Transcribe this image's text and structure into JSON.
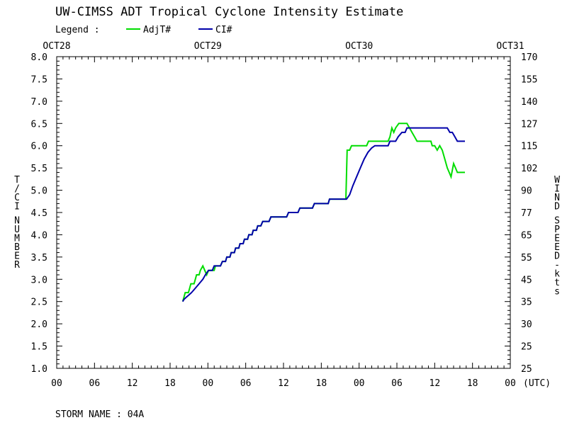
{
  "chart_data": {
    "type": "line",
    "title": "UW-CIMSS ADT Tropical Cyclone Intensity Estimate",
    "legend_label": "Legend :",
    "series": [
      {
        "name": "AdjT#",
        "color": "#00dd00",
        "points": [
          [
            20.0,
            2.5
          ],
          [
            20.2,
            2.6
          ],
          [
            20.4,
            2.7
          ],
          [
            20.9,
            2.7
          ],
          [
            21.1,
            2.8
          ],
          [
            21.3,
            2.9
          ],
          [
            21.8,
            2.9
          ],
          [
            22.0,
            3.0
          ],
          [
            22.2,
            3.1
          ],
          [
            22.6,
            3.1
          ],
          [
            22.8,
            3.2
          ],
          [
            23.2,
            3.3
          ],
          [
            23.5,
            3.2
          ],
          [
            23.8,
            3.1
          ],
          [
            24.1,
            3.2
          ],
          [
            25.0,
            3.2
          ],
          [
            25.2,
            3.3
          ],
          [
            26.0,
            3.3
          ],
          [
            26.3,
            3.4
          ],
          [
            26.8,
            3.4
          ],
          [
            27.0,
            3.5
          ],
          [
            27.5,
            3.5
          ],
          [
            27.7,
            3.6
          ],
          [
            28.2,
            3.6
          ],
          [
            28.4,
            3.7
          ],
          [
            28.9,
            3.7
          ],
          [
            29.1,
            3.8
          ],
          [
            29.6,
            3.8
          ],
          [
            29.8,
            3.9
          ],
          [
            30.3,
            3.9
          ],
          [
            30.5,
            4.0
          ],
          [
            31.0,
            4.0
          ],
          [
            31.2,
            4.1
          ],
          [
            31.7,
            4.1
          ],
          [
            31.9,
            4.2
          ],
          [
            32.4,
            4.2
          ],
          [
            32.7,
            4.3
          ],
          [
            33.7,
            4.3
          ],
          [
            34.0,
            4.4
          ],
          [
            36.5,
            4.4
          ],
          [
            36.8,
            4.5
          ],
          [
            38.3,
            4.5
          ],
          [
            38.6,
            4.6
          ],
          [
            40.6,
            4.6
          ],
          [
            40.9,
            4.7
          ],
          [
            43.1,
            4.7
          ],
          [
            43.3,
            4.8
          ],
          [
            45.9,
            4.8
          ],
          [
            46.1,
            5.9
          ],
          [
            46.5,
            5.9
          ],
          [
            46.8,
            6.0
          ],
          [
            49.2,
            6.0
          ],
          [
            49.5,
            6.1
          ],
          [
            52.6,
            6.1
          ],
          [
            52.9,
            6.2
          ],
          [
            53.2,
            6.4
          ],
          [
            53.5,
            6.3
          ],
          [
            53.8,
            6.4
          ],
          [
            54.3,
            6.5
          ],
          [
            55.6,
            6.5
          ],
          [
            56.0,
            6.4
          ],
          [
            56.4,
            6.3
          ],
          [
            56.8,
            6.2
          ],
          [
            57.2,
            6.1
          ],
          [
            59.4,
            6.1
          ],
          [
            59.6,
            6.0
          ],
          [
            60.0,
            6.0
          ],
          [
            60.4,
            5.9
          ],
          [
            60.8,
            6.0
          ],
          [
            61.2,
            5.9
          ],
          [
            61.6,
            5.7
          ],
          [
            62.0,
            5.5
          ],
          [
            62.3,
            5.4
          ],
          [
            62.6,
            5.3
          ],
          [
            63.0,
            5.6
          ],
          [
            63.3,
            5.5
          ],
          [
            63.6,
            5.4
          ],
          [
            64.8,
            5.4
          ]
        ]
      },
      {
        "name": "CI#",
        "color": "#0000aa",
        "points": [
          [
            20.0,
            2.5
          ],
          [
            20.2,
            2.55
          ],
          [
            20.6,
            2.6
          ],
          [
            21.0,
            2.65
          ],
          [
            21.4,
            2.7
          ],
          [
            22.0,
            2.8
          ],
          [
            22.6,
            2.9
          ],
          [
            23.2,
            3.0
          ],
          [
            23.6,
            3.1
          ],
          [
            24.1,
            3.2
          ],
          [
            24.7,
            3.2
          ],
          [
            25.0,
            3.3
          ],
          [
            26.0,
            3.3
          ],
          [
            26.3,
            3.4
          ],
          [
            26.8,
            3.4
          ],
          [
            27.0,
            3.5
          ],
          [
            27.5,
            3.5
          ],
          [
            27.7,
            3.6
          ],
          [
            28.2,
            3.6
          ],
          [
            28.4,
            3.7
          ],
          [
            28.9,
            3.7
          ],
          [
            29.1,
            3.8
          ],
          [
            29.6,
            3.8
          ],
          [
            29.8,
            3.9
          ],
          [
            30.3,
            3.9
          ],
          [
            30.5,
            4.0
          ],
          [
            31.0,
            4.0
          ],
          [
            31.2,
            4.1
          ],
          [
            31.7,
            4.1
          ],
          [
            31.9,
            4.2
          ],
          [
            32.4,
            4.2
          ],
          [
            32.7,
            4.3
          ],
          [
            33.7,
            4.3
          ],
          [
            34.0,
            4.4
          ],
          [
            36.5,
            4.4
          ],
          [
            36.8,
            4.5
          ],
          [
            38.3,
            4.5
          ],
          [
            38.6,
            4.6
          ],
          [
            40.6,
            4.6
          ],
          [
            40.9,
            4.7
          ],
          [
            43.1,
            4.7
          ],
          [
            43.3,
            4.8
          ],
          [
            46.0,
            4.8
          ],
          [
            46.5,
            4.9
          ],
          [
            47.0,
            5.1
          ],
          [
            47.6,
            5.3
          ],
          [
            48.2,
            5.5
          ],
          [
            48.8,
            5.7
          ],
          [
            49.4,
            5.85
          ],
          [
            50.0,
            5.95
          ],
          [
            50.5,
            6.0
          ],
          [
            52.6,
            6.0
          ],
          [
            52.9,
            6.1
          ],
          [
            53.8,
            6.1
          ],
          [
            54.2,
            6.2
          ],
          [
            54.8,
            6.3
          ],
          [
            55.3,
            6.3
          ],
          [
            55.6,
            6.4
          ],
          [
            62.0,
            6.4
          ],
          [
            62.4,
            6.3
          ],
          [
            62.8,
            6.3
          ],
          [
            63.2,
            6.2
          ],
          [
            63.6,
            6.1
          ],
          [
            64.8,
            6.1
          ]
        ]
      }
    ],
    "x_axis": {
      "label_suffix": "(UTC)",
      "range": [
        0,
        72
      ],
      "tick_labels": [
        "00",
        "06",
        "12",
        "18",
        "00",
        "06",
        "12",
        "18",
        "00",
        "06",
        "12",
        "18",
        "00"
      ],
      "date_labels": [
        "OCT28",
        "OCT29",
        "OCT30",
        "OCT31"
      ]
    },
    "y_left": {
      "label": "T/CI NUMBER",
      "range": [
        1.0,
        8.0
      ],
      "tick_labels": [
        "8.0",
        "7.5",
        "7.0",
        "6.5",
        "6.0",
        "5.5",
        "5.0",
        "4.5",
        "4.0",
        "3.5",
        "3.0",
        "2.5",
        "2.0",
        "1.5",
        "1.0"
      ]
    },
    "y_right": {
      "label": "WIND SPEED-kts",
      "tick_labels": [
        "170",
        "155",
        "140",
        "127",
        "115",
        "102",
        "90",
        "77",
        "65",
        "55",
        "45",
        "35",
        "30",
        "25",
        "25"
      ]
    },
    "footer": "STORM NAME : 04A"
  }
}
